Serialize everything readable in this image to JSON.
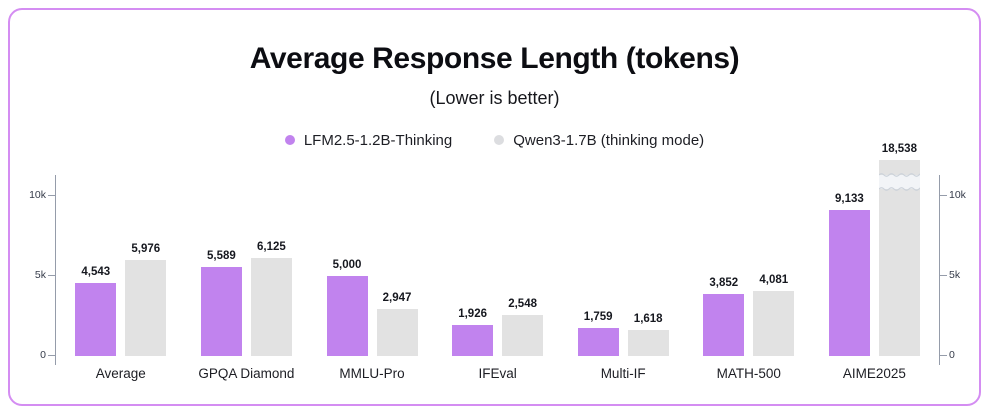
{
  "header": {
    "title": "Average Response Length (tokens)",
    "subtitle": "(Lower is better)"
  },
  "legend": {
    "items": [
      {
        "label": "LFM2.5-1.2B-Thinking",
        "color": "#c183ee"
      },
      {
        "label": "Qwen3-1.7B (thinking mode)",
        "color": "#dcdde0"
      }
    ]
  },
  "axis": {
    "ticks": [
      {
        "label": "0",
        "value": 0
      },
      {
        "label": "5k",
        "value": 5000
      },
      {
        "label": "10k",
        "value": 10000
      }
    ],
    "sides": [
      "left",
      "right"
    ]
  },
  "chart_data": {
    "type": "bar",
    "title": "Average Response Length (tokens)",
    "subtitle": "(Lower is better)",
    "categories": [
      "Average",
      "GPQA Diamond",
      "MMLU-Pro",
      "IFEval",
      "Multi-IF",
      "MATH-500",
      "AIME2025"
    ],
    "series": [
      {
        "name": "LFM2.5-1.2B-Thinking",
        "color": "#c183ee",
        "values": [
          4543,
          5589,
          5000,
          1926,
          1759,
          3852,
          9133
        ]
      },
      {
        "name": "Qwen3-1.7B (thinking mode)",
        "color": "#e2e2e2",
        "values": [
          5976,
          6125,
          2947,
          2548,
          1618,
          4081,
          18538
        ]
      }
    ],
    "value_labels": [
      [
        "4,543",
        "5,589",
        "5,000",
        "1,926",
        "1,759",
        "3,852",
        "9,133"
      ],
      [
        "5,976",
        "6,125",
        "2,947",
        "2,548",
        "1,618",
        "4,081",
        "18,538"
      ]
    ],
    "xlabel": "",
    "ylabel": "",
    "ylim": [
      0,
      11300
    ],
    "grid": false,
    "legend_position": "top",
    "axis_break": {
      "series_index": 1,
      "category_index": 6,
      "note": "bar value exceeds axis range; drawn with wavy break"
    }
  },
  "colors": {
    "accent_purple": "#c183ee",
    "bar_gray": "#e2e2e2",
    "card_border": "#d48df2",
    "axis_line": "#959caa",
    "break_fill": "#f2f4f7",
    "break_stroke": "#ccd2da"
  }
}
